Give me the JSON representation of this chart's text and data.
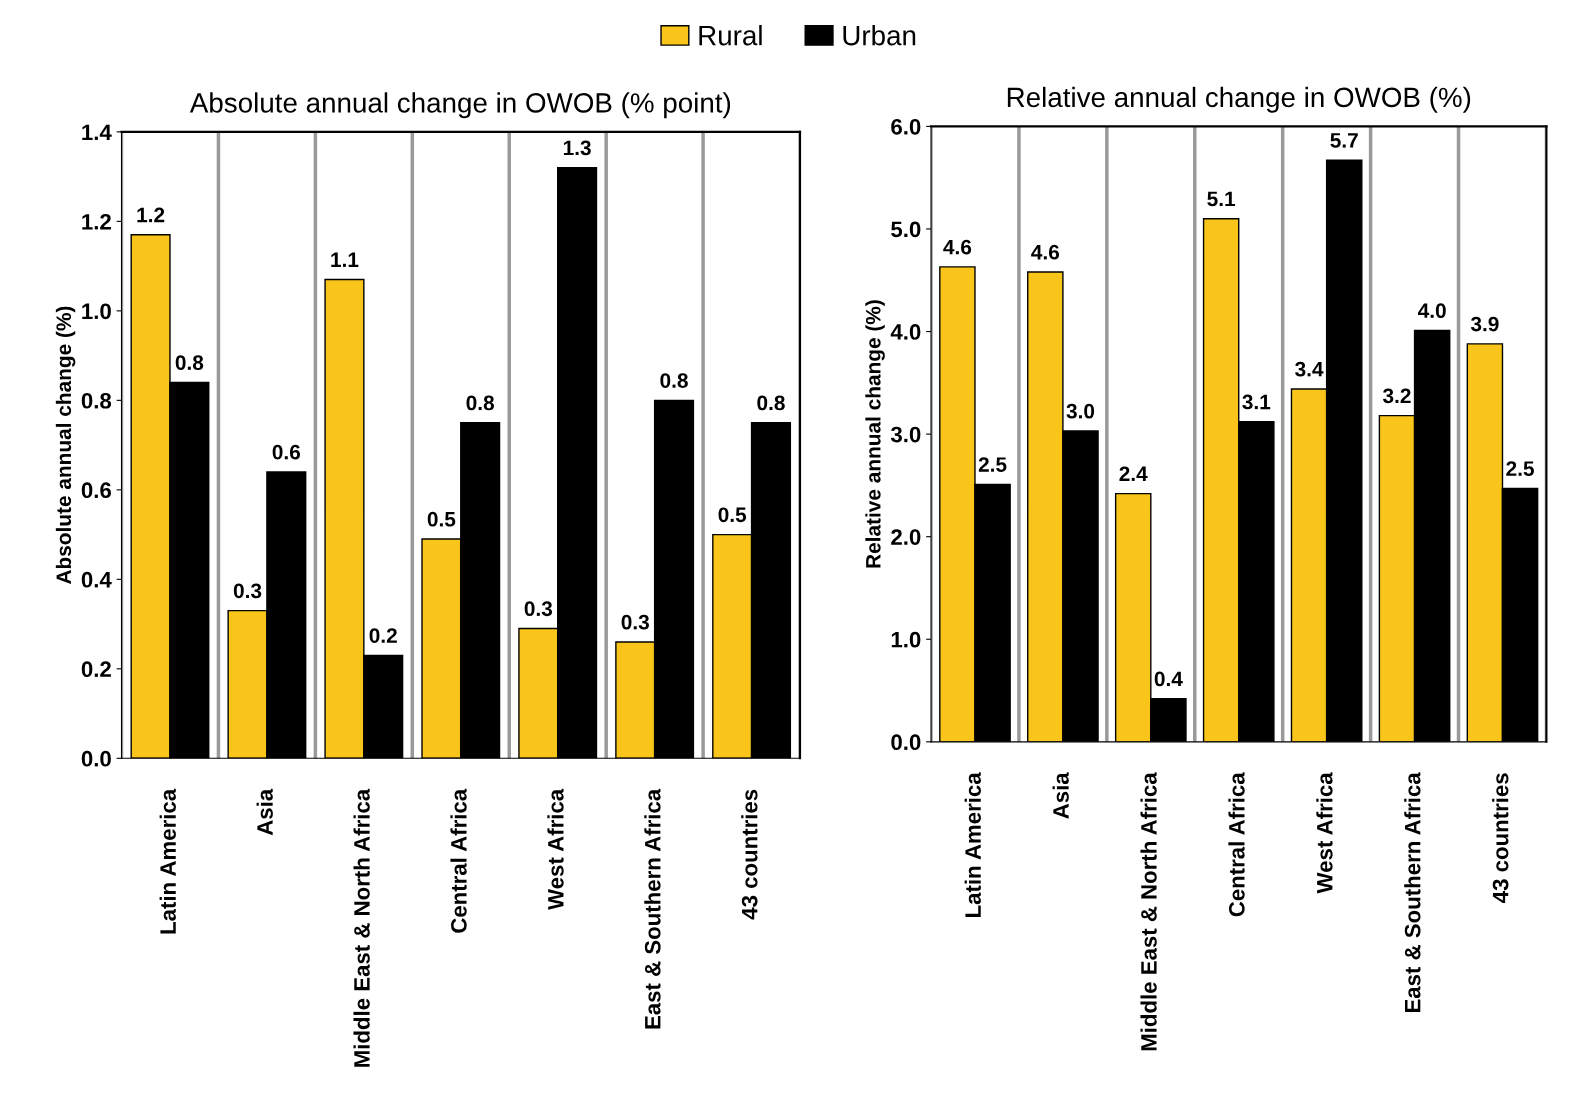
{
  "chart_data": [
    {
      "type": "bar",
      "title": "Absolute annual change in OWOB (% point)",
      "ylabel": "Absolute annual change (%)",
      "categories": [
        "Latin America",
        "Asia",
        "Middle East & North Africa",
        "Central Africa",
        "West Africa",
        "East & Southern Africa",
        "43 countries"
      ],
      "series": [
        {
          "name": "Rural",
          "color": "#f9c51a",
          "values": [
            1.17,
            0.33,
            1.07,
            0.49,
            0.29,
            0.26,
            0.5
          ],
          "value_labels": [
            "1.2",
            "0.3",
            "1.1",
            "0.5",
            "0.3",
            "0.3",
            "0.5"
          ]
        },
        {
          "name": "Urban",
          "color": "#000000",
          "values": [
            0.84,
            0.64,
            0.23,
            0.75,
            1.32,
            0.8,
            0.75
          ],
          "value_labels": [
            "0.8",
            "0.6",
            "0.2",
            "0.8",
            "1.3",
            "0.8",
            "0.8"
          ]
        }
      ],
      "ylim": [
        0,
        1.4
      ],
      "yticks": [
        {
          "value": 0,
          "label": "0.0"
        },
        0.2,
        0.4,
        0.6,
        0.8,
        {
          "value": 1,
          "label": "1.0"
        },
        1.2,
        1.4
      ],
      "grid": "x",
      "legend": "top"
    },
    {
      "type": "bar",
      "title": "Relative annual change in OWOB (%)",
      "ylabel": "Relative annual change (%)",
      "categories": [
        "Latin America",
        "Asia",
        "Middle East & North Africa",
        "Central Africa",
        "West Africa",
        "East & Southern Africa",
        "43 countries"
      ],
      "series": [
        {
          "name": "Rural",
          "color": "#f9c51a",
          "values": [
            4.63,
            4.58,
            2.42,
            5.1,
            3.44,
            3.18,
            3.88
          ],
          "value_labels": [
            "4.6",
            "4.6",
            "2.4",
            "5.1",
            "3.4",
            "3.2",
            "3.9"
          ]
        },
        {
          "name": "Urban",
          "color": "#000000",
          "values": [
            2.51,
            3.03,
            0.42,
            3.12,
            5.67,
            4.01,
            2.47
          ],
          "value_labels": [
            "2.5",
            "3.0",
            "0.4",
            "3.1",
            "5.7",
            "4.0",
            "2.5"
          ]
        }
      ],
      "ylim": [
        0,
        6
      ],
      "yticks": [
        {
          "value": 0,
          "label": "0.0"
        },
        {
          "value": 1,
          "label": "1.0"
        },
        {
          "value": 2,
          "label": "2.0"
        },
        {
          "value": 3,
          "label": "3.0"
        },
        {
          "value": 4,
          "label": "4.0"
        },
        {
          "value": 5,
          "label": "5.0"
        },
        {
          "value": 6,
          "label": "6.0"
        }
      ],
      "grid": "x"
    }
  ]
}
